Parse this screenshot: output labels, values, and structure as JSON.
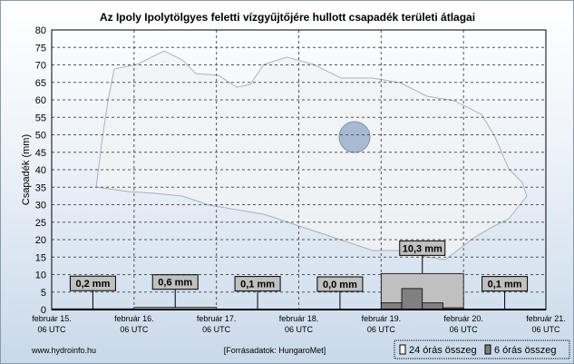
{
  "chart_data": {
    "type": "bar",
    "title": "Az Ipoly Ipolytölgyes feletti vízgyűjtőjére hullott csapadék területi átlagai",
    "ylabel": "Csapadék (mm)",
    "ylim": [
      0,
      80
    ],
    "yticks": [
      0,
      5,
      10,
      15,
      20,
      25,
      30,
      35,
      40,
      45,
      50,
      55,
      60,
      65,
      70,
      75,
      80
    ],
    "xticks": [
      [
        "február 15.",
        "06 UTC"
      ],
      [
        "február 16.",
        "06 UTC"
      ],
      [
        "február 17.",
        "06 UTC"
      ],
      [
        "február 18.",
        "06 UTC"
      ],
      [
        "február 19.",
        "06 UTC"
      ],
      [
        "február 20.",
        "06 UTC"
      ],
      [
        "február 21.",
        "06 UTC"
      ]
    ],
    "series": [
      {
        "name": "24 órás összeg",
        "color": "#c0c0c0",
        "values": [
          0.2,
          0.6,
          0.1,
          0.0,
          10.3,
          0.1
        ],
        "labels": [
          "0,2 mm",
          "0,6 mm",
          "0,1 mm",
          "0,0 mm",
          "10,3 mm",
          "0,1 mm"
        ]
      },
      {
        "name": "6 órás összeg",
        "color": "#808080",
        "values": [
          0.05,
          0.05,
          0.05,
          0.05,
          0.15,
          0.15,
          0.15,
          0.15,
          0,
          0.05,
          0.05,
          0,
          0,
          0,
          0,
          0,
          1.9,
          6.0,
          1.9,
          0.5,
          0,
          0.05,
          0.05,
          0
        ]
      }
    ],
    "grid": true,
    "legend": "bottom-right"
  },
  "footer": {
    "site": "www.hydroinfo.hu",
    "source": "[Forrásadatok: HungaroMet]"
  }
}
